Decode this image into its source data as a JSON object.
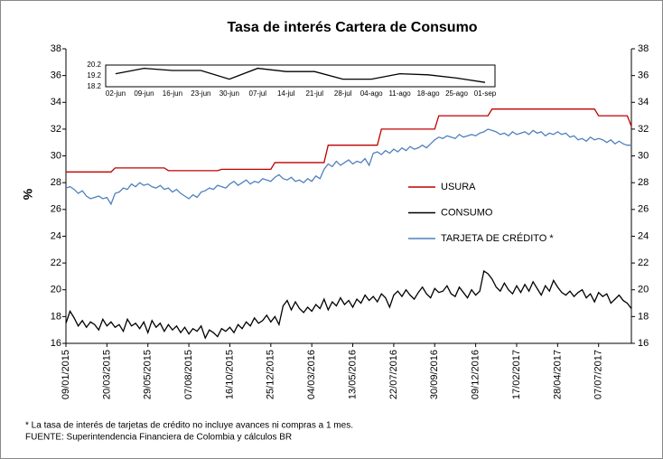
{
  "chart_data": [
    {
      "type": "line",
      "title": "Tasa de interés Cartera de Consumo",
      "ylabel": "%",
      "categories": [
        "09/01/2015",
        null,
        null,
        null,
        null,
        null,
        null,
        null,
        null,
        null,
        "20/03/2015",
        null,
        null,
        null,
        null,
        null,
        null,
        null,
        null,
        null,
        "29/05/2015",
        null,
        null,
        null,
        null,
        null,
        null,
        null,
        null,
        null,
        "07/08/2015",
        null,
        null,
        null,
        null,
        null,
        null,
        null,
        null,
        null,
        "16/10/2015",
        null,
        null,
        null,
        null,
        null,
        null,
        null,
        null,
        null,
        "25/12/2015",
        null,
        null,
        null,
        null,
        null,
        null,
        null,
        null,
        null,
        "04/03/2016",
        null,
        null,
        null,
        null,
        null,
        null,
        null,
        null,
        null,
        "13/05/2016",
        null,
        null,
        null,
        null,
        null,
        null,
        null,
        null,
        null,
        "22/07/2016",
        null,
        null,
        null,
        null,
        null,
        null,
        null,
        null,
        null,
        "30/09/2016",
        null,
        null,
        null,
        null,
        null,
        null,
        null,
        null,
        null,
        "09/12/2016",
        null,
        null,
        null,
        null,
        null,
        null,
        null,
        null,
        null,
        "17/02/2017",
        null,
        null,
        null,
        null,
        null,
        null,
        null,
        null,
        null,
        "28/04/2017",
        null,
        null,
        null,
        null,
        null,
        null,
        null,
        null,
        null,
        "07/07/2017",
        null,
        null,
        null,
        null,
        null,
        null,
        null,
        null
      ],
      "ylim": [
        16,
        38
      ],
      "yticks": [
        16,
        18,
        20,
        22,
        24,
        26,
        28,
        30,
        32,
        34,
        36,
        38
      ],
      "y2lim": [
        16,
        38
      ],
      "y2ticks": [
        16,
        18,
        20,
        22,
        24,
        26,
        28,
        30,
        32,
        34,
        36,
        38
      ],
      "grid": false,
      "series": [
        {
          "name": "USURA",
          "color": "#c00000",
          "values": [
            28.8,
            28.8,
            28.8,
            28.8,
            28.8,
            28.8,
            28.8,
            28.8,
            28.8,
            28.8,
            28.8,
            28.8,
            29.1,
            29.1,
            29.1,
            29.1,
            29.1,
            29.1,
            29.1,
            29.1,
            29.1,
            29.1,
            29.1,
            29.1,
            29.1,
            28.9,
            28.9,
            28.9,
            28.9,
            28.9,
            28.9,
            28.9,
            28.9,
            28.9,
            28.9,
            28.9,
            28.9,
            28.9,
            29.0,
            29.0,
            29.0,
            29.0,
            29.0,
            29.0,
            29.0,
            29.0,
            29.0,
            29.0,
            29.0,
            29.0,
            29.0,
            29.5,
            29.5,
            29.5,
            29.5,
            29.5,
            29.5,
            29.5,
            29.5,
            29.5,
            29.5,
            29.5,
            29.5,
            29.5,
            30.8,
            30.8,
            30.8,
            30.8,
            30.8,
            30.8,
            30.8,
            30.8,
            30.8,
            30.8,
            30.8,
            30.8,
            30.8,
            32.0,
            32.0,
            32.0,
            32.0,
            32.0,
            32.0,
            32.0,
            32.0,
            32.0,
            32.0,
            32.0,
            32.0,
            32.0,
            32.0,
            33.0,
            33.0,
            33.0,
            33.0,
            33.0,
            33.0,
            33.0,
            33.0,
            33.0,
            33.0,
            33.0,
            33.0,
            33.0,
            33.5,
            33.5,
            33.5,
            33.5,
            33.5,
            33.5,
            33.5,
            33.5,
            33.5,
            33.5,
            33.5,
            33.5,
            33.5,
            33.5,
            33.5,
            33.5,
            33.5,
            33.5,
            33.5,
            33.5,
            33.5,
            33.5,
            33.5,
            33.5,
            33.5,
            33.5,
            33.0,
            33.0,
            33.0,
            33.0,
            33.0,
            33.0,
            33.0,
            33.0,
            32.2
          ]
        },
        {
          "name": "CONSUMO",
          "color": "#000000",
          "values": [
            17.5,
            18.4,
            17.9,
            17.3,
            17.7,
            17.2,
            17.6,
            17.4,
            17.0,
            17.8,
            17.3,
            17.6,
            17.2,
            17.4,
            16.9,
            17.8,
            17.3,
            17.5,
            17.1,
            17.6,
            16.8,
            17.7,
            17.2,
            17.5,
            16.9,
            17.4,
            17.0,
            17.3,
            16.8,
            17.2,
            16.7,
            17.1,
            16.9,
            17.3,
            16.4,
            17.0,
            16.8,
            16.5,
            17.1,
            16.9,
            17.2,
            16.8,
            17.4,
            17.1,
            17.6,
            17.3,
            17.9,
            17.5,
            17.7,
            18.1,
            17.6,
            18.0,
            17.4,
            18.8,
            19.2,
            18.5,
            19.1,
            18.6,
            18.3,
            18.7,
            18.4,
            18.9,
            18.6,
            19.3,
            18.5,
            19.1,
            18.8,
            19.4,
            18.9,
            19.2,
            18.7,
            19.3,
            19.0,
            19.6,
            19.2,
            19.5,
            19.1,
            19.7,
            19.4,
            18.7,
            19.6,
            19.9,
            19.5,
            20.0,
            19.6,
            19.3,
            19.8,
            20.2,
            19.7,
            19.4,
            20.1,
            19.8,
            19.9,
            20.3,
            19.7,
            19.5,
            20.2,
            19.8,
            19.4,
            20.0,
            19.6,
            19.9,
            21.4,
            21.2,
            20.8,
            20.2,
            19.9,
            20.5,
            20.0,
            19.7,
            20.3,
            19.8,
            20.4,
            19.9,
            20.6,
            20.1,
            19.6,
            20.3,
            19.9,
            20.7,
            20.2,
            19.8,
            19.6,
            19.9,
            19.5,
            19.8,
            20.0,
            19.4,
            19.7,
            19.1,
            19.8,
            19.5,
            19.7,
            19.0,
            19.3,
            19.6,
            19.2,
            19.0,
            18.6
          ]
        },
        {
          "name": "TARJETA DE CRÉDITO *",
          "color": "#4f81bd",
          "values": [
            27.6,
            27.7,
            27.5,
            27.2,
            27.4,
            27.0,
            26.8,
            26.9,
            27.0,
            26.8,
            26.9,
            26.4,
            27.2,
            27.3,
            27.6,
            27.5,
            27.9,
            27.7,
            28.0,
            27.8,
            27.9,
            27.7,
            27.6,
            27.8,
            27.5,
            27.6,
            27.3,
            27.5,
            27.2,
            27.0,
            26.8,
            27.1,
            26.9,
            27.3,
            27.4,
            27.6,
            27.5,
            27.8,
            27.7,
            27.6,
            27.9,
            28.1,
            27.8,
            28.0,
            28.2,
            27.9,
            28.1,
            28.0,
            28.3,
            28.2,
            28.1,
            28.4,
            28.6,
            28.3,
            28.2,
            28.4,
            28.1,
            28.2,
            28.0,
            28.3,
            28.1,
            28.5,
            28.3,
            29.0,
            29.4,
            29.2,
            29.6,
            29.3,
            29.5,
            29.7,
            29.4,
            29.6,
            29.5,
            29.8,
            29.3,
            30.2,
            30.3,
            30.1,
            30.4,
            30.2,
            30.5,
            30.3,
            30.6,
            30.4,
            30.7,
            30.5,
            30.6,
            30.8,
            30.6,
            30.9,
            31.2,
            31.4,
            31.3,
            31.5,
            31.4,
            31.3,
            31.6,
            31.4,
            31.5,
            31.6,
            31.5,
            31.7,
            31.8,
            32.0,
            31.9,
            31.8,
            31.6,
            31.7,
            31.5,
            31.8,
            31.6,
            31.7,
            31.8,
            31.6,
            31.9,
            31.7,
            31.8,
            31.5,
            31.7,
            31.6,
            31.8,
            31.6,
            31.7,
            31.4,
            31.5,
            31.2,
            31.3,
            31.1,
            31.4,
            31.2,
            31.3,
            31.2,
            31.0,
            31.2,
            30.9,
            31.1,
            30.9,
            30.8,
            30.8
          ]
        }
      ]
    },
    {
      "type": "line",
      "categories": [
        "02-jun",
        "09-jun",
        "16-jun",
        "23-jun",
        "30-jun",
        "07-jul",
        "14-jul",
        "21-jul",
        "28-jul",
        "04-ago",
        "11-ago",
        "18-ago",
        "25-ago",
        "01-sep"
      ],
      "ylim": [
        18.2,
        20.2
      ],
      "yticks": [
        18.2,
        19.2,
        20.2
      ],
      "series": [
        {
          "color": "#000000",
          "values": [
            19.4,
            19.9,
            19.7,
            19.7,
            18.9,
            19.9,
            19.6,
            19.6,
            18.9,
            18.9,
            19.4,
            19.3,
            19.0,
            18.6
          ]
        }
      ]
    }
  ],
  "footnotes": [
    "* La tasa de interés de tarjetas de crédito no incluye avances ni compras a 1 mes.",
    "FUENTE: Superintendencia Financiera de Colombia y cálculos BR"
  ]
}
